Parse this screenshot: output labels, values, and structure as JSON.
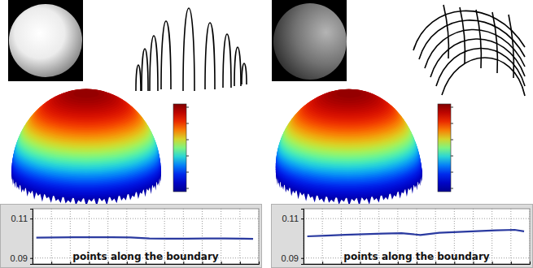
{
  "chart_data": [
    {
      "type": "line",
      "xlabel": "points along the boundary",
      "x": [
        2,
        12,
        22,
        32,
        42,
        52,
        62,
        72,
        82,
        92,
        102,
        112,
        117
      ],
      "series": [
        {
          "color": "#2a3aa0",
          "values": [
            0.1003,
            0.1004,
            0.1005,
            0.1005,
            0.1005,
            0.1004,
            0.0999,
            0.0998,
            0.0998,
            0.0999,
            0.0999,
            0.0998,
            0.0997
          ]
        }
      ],
      "xlim": [
        0,
        120
      ],
      "ylim": [
        0.087,
        0.115
      ],
      "xticks": [
        0,
        10,
        20,
        30,
        40,
        50,
        60,
        70,
        80,
        90,
        100,
        110,
        120
      ],
      "yticks": [
        0.09,
        0.11
      ],
      "grid": true,
      "tick_labels": "y"
    },
    {
      "type": "line",
      "xlabel": "points along the boundary",
      "x": [
        2,
        12,
        22,
        32,
        42,
        52,
        62,
        72,
        82,
        92,
        102,
        112,
        117
      ],
      "series": [
        {
          "color": "#2a3aa0",
          "values": [
            0.101,
            0.1014,
            0.1018,
            0.1021,
            0.1024,
            0.1026,
            0.1017,
            0.1028,
            0.1032,
            0.1036,
            0.104,
            0.1043,
            0.1035
          ]
        }
      ],
      "xlim": [
        0,
        120
      ],
      "ylim": [
        0.087,
        0.115
      ],
      "xticks": [
        0,
        10,
        20,
        30,
        40,
        50,
        60,
        70,
        80,
        90,
        100,
        110,
        120
      ],
      "yticks": [
        0.09,
        0.11
      ],
      "grid": true,
      "tick_labels": "y"
    }
  ]
}
